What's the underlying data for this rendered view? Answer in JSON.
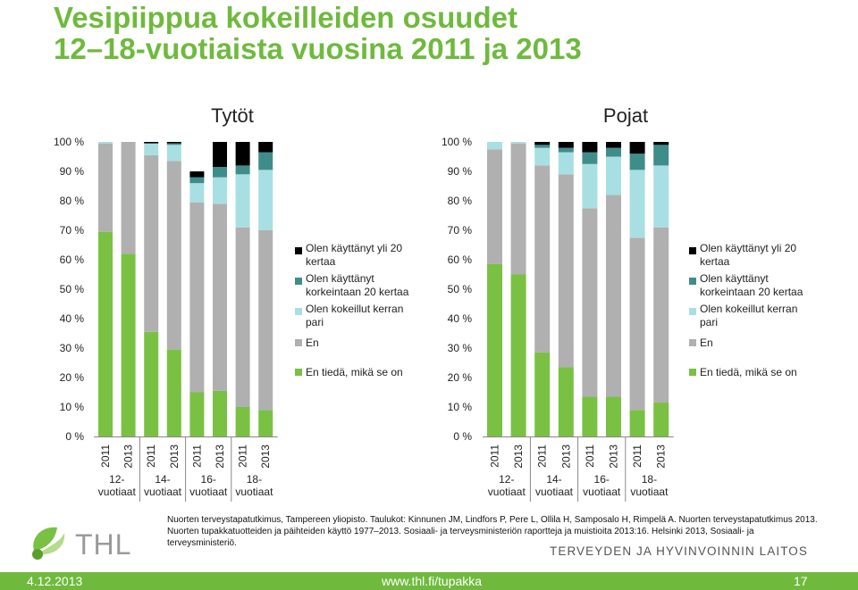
{
  "slide": {
    "title_lines": [
      "Vesipiippua kokeilleiden osuudet",
      "12–18-vuotiaista vuosina 2011 ja 2013"
    ],
    "source": "Nuorten terveystapatutkimus, Tampereen yliopisto. Taulukot: Kinnunen JM, Lindfors P, Pere L, Ollila H, Samposalo H, Rimpelä A. Nuorten terveystapatutkimus 2013. Nuorten tupakkatuotteiden ja päihteiden käyttö 1977–2013. Sosiaali- ja terveysministeriön raportteja ja muistioita 2013:16. Helsinki 2013, Sosiaali- ja terveysministeriö.",
    "logo_text": "THL",
    "org_name": "TERVEYDEN JA HYVINVOINNIN LAITOS",
    "footer": {
      "date": "4.12.2013",
      "url": "www.thl.fi/tupakka",
      "page": "17"
    }
  },
  "chart_data": [
    {
      "type": "bar",
      "stacked": true,
      "title": "Tytöt",
      "categories": [
        "2011",
        "2013",
        "2011",
        "2013",
        "2011",
        "2013",
        "2011",
        "2013"
      ],
      "groups": [
        "12-\nvuotiaat",
        "14-\nvuotiaat",
        "16-\nvuotiaat",
        "18-\nvuotiaat"
      ],
      "ylim": [
        0,
        100
      ],
      "yticks": [
        "0 %",
        "10 %",
        "20 %",
        "30 %",
        "40 %",
        "50 %",
        "60 %",
        "70 %",
        "80 %",
        "90 %",
        "100 %"
      ],
      "legend_position": "right",
      "series": [
        {
          "name": "En tiedä, mikä se on",
          "color": "#7ac143",
          "values": [
            69.5,
            62,
            35.5,
            29.5,
            15,
            15.5,
            10,
            9
          ]
        },
        {
          "name": "En",
          "color": "#b0b0b0",
          "values": [
            30,
            38,
            60,
            64,
            64.5,
            63.5,
            61,
            61
          ]
        },
        {
          "name": "Olen kokeillut kerran pari",
          "color": "#a8dfe3",
          "values": [
            0.5,
            0,
            4,
            5.5,
            6.5,
            9,
            18,
            20.5
          ]
        },
        {
          "name": "Olen käyttänyt korkeintaan 20 kertaa",
          "color": "#3f8d8b",
          "values": [
            0,
            0,
            0,
            0.5,
            2,
            3.5,
            3,
            6
          ]
        },
        {
          "name": "Olen käyttänyt yli 20 kertaa",
          "color": "#000000",
          "values": [
            0,
            0,
            0.5,
            0.5,
            2,
            8.5,
            8,
            3.5
          ]
        }
      ]
    },
    {
      "type": "bar",
      "stacked": true,
      "title": "Pojat",
      "categories": [
        "2011",
        "2013",
        "2011",
        "2013",
        "2011",
        "2013",
        "2011",
        "2013"
      ],
      "groups": [
        "12-\nvuotiaat",
        "14-\nvuotiaat",
        "16-\nvuotiaat",
        "18-\nvuotiaat"
      ],
      "ylim": [
        0,
        100
      ],
      "yticks": [
        "0 %",
        "10 %",
        "20 %",
        "30 %",
        "40 %",
        "50 %",
        "60 %",
        "70 %",
        "80 %",
        "90 %",
        "100 %"
      ],
      "legend_position": "right",
      "series": [
        {
          "name": "En tiedä, mikä se on",
          "color": "#7ac143",
          "values": [
            58.5,
            55,
            28.5,
            23.5,
            13.5,
            13.5,
            9,
            11.5
          ]
        },
        {
          "name": "En",
          "color": "#b0b0b0",
          "values": [
            39,
            44.5,
            63.5,
            65.5,
            64,
            68.5,
            58.5,
            59.5
          ]
        },
        {
          "name": "Olen kokeillut kerran pari",
          "color": "#a8dfe3",
          "values": [
            2.5,
            0.5,
            6,
            7.5,
            15,
            13,
            23,
            21
          ]
        },
        {
          "name": "Olen käyttänyt korkeintaan 20 kertaa",
          "color": "#3f8d8b",
          "values": [
            0,
            0,
            1,
            1.5,
            4,
            3,
            5.5,
            7
          ]
        },
        {
          "name": "Olen käyttänyt yli 20 kertaa",
          "color": "#000000",
          "values": [
            0,
            0,
            1,
            2,
            3.5,
            2,
            4,
            1
          ]
        }
      ]
    }
  ]
}
